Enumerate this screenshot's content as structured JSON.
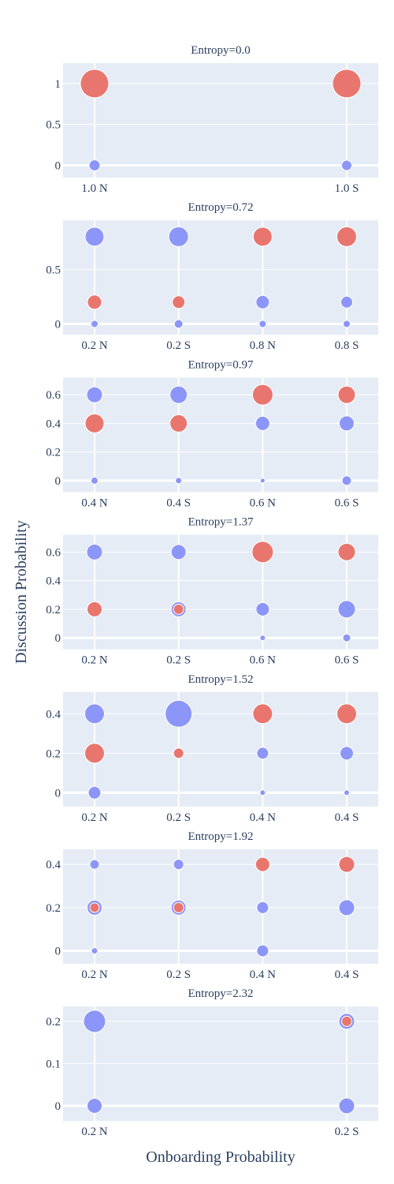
{
  "figure": {
    "xlabel": "Onboarding Probability",
    "ylabel": "Discussion Probability",
    "colors": {
      "blue": "#8c96f8",
      "red": "#e8766e",
      "background": "#e5ecf6"
    }
  },
  "chart_data": [
    {
      "type": "scatter",
      "title": "Entropy=0.0",
      "categories": [
        "1.0 N",
        "1.0 S"
      ],
      "ylim": [
        -0.15,
        1.25
      ],
      "yticks": [
        0,
        0.5,
        1
      ],
      "ytick_labels": [
        "0",
        "0.5",
        "1"
      ],
      "points": [
        {
          "x": "1.0 N",
          "y": 0,
          "color": "blue",
          "size": 7
        },
        {
          "x": "1.0 N",
          "y": 1,
          "color": "red",
          "size": 18
        },
        {
          "x": "1.0 S",
          "y": 0,
          "color": "blue",
          "size": 6.5
        },
        {
          "x": "1.0 S",
          "y": 1,
          "color": "red",
          "size": 18
        }
      ]
    },
    {
      "type": "scatter",
      "title": "Entropy=0.72",
      "categories": [
        "0.2 N",
        "0.2 S",
        "0.8 N",
        "0.8 S"
      ],
      "ylim": [
        -0.1,
        0.95
      ],
      "yticks": [
        0,
        0.5
      ],
      "ytick_labels": [
        "0",
        "0.5"
      ],
      "points": [
        {
          "x": "0.2 N",
          "y": 0.8,
          "color": "blue",
          "size": 12
        },
        {
          "x": "0.2 N",
          "y": 0.2,
          "color": "red",
          "size": 9
        },
        {
          "x": "0.2 N",
          "y": 0,
          "color": "blue",
          "size": 4.5
        },
        {
          "x": "0.2 S",
          "y": 0.8,
          "color": "blue",
          "size": 12.5
        },
        {
          "x": "0.2 S",
          "y": 0.2,
          "color": "red",
          "size": 8
        },
        {
          "x": "0.2 S",
          "y": 0,
          "color": "blue",
          "size": 5.5
        },
        {
          "x": "0.8 N",
          "y": 0.8,
          "color": "red",
          "size": 12
        },
        {
          "x": "0.8 N",
          "y": 0.2,
          "color": "blue",
          "size": 8.5
        },
        {
          "x": "0.8 N",
          "y": 0,
          "color": "blue",
          "size": 4.5
        },
        {
          "x": "0.8 S",
          "y": 0.8,
          "color": "red",
          "size": 12.5
        },
        {
          "x": "0.8 S",
          "y": 0.2,
          "color": "blue",
          "size": 7.5
        },
        {
          "x": "0.8 S",
          "y": 0,
          "color": "blue",
          "size": 4.5
        }
      ]
    },
    {
      "type": "scatter",
      "title": "Entropy=0.97",
      "categories": [
        "0.4 N",
        "0.4 S",
        "0.6 N",
        "0.6 S"
      ],
      "ylim": [
        -0.08,
        0.72
      ],
      "yticks": [
        0,
        0.2,
        0.4,
        0.6
      ],
      "ytick_labels": [
        "0",
        "0.2",
        "0.4",
        "0.6"
      ],
      "points": [
        {
          "x": "0.4 N",
          "y": 0.6,
          "color": "blue",
          "size": 10
        },
        {
          "x": "0.4 N",
          "y": 0.4,
          "color": "red",
          "size": 12
        },
        {
          "x": "0.4 N",
          "y": 0,
          "color": "blue",
          "size": 4.5
        },
        {
          "x": "0.4 S",
          "y": 0.6,
          "color": "blue",
          "size": 11
        },
        {
          "x": "0.4 S",
          "y": 0.4,
          "color": "red",
          "size": 11
        },
        {
          "x": "0.4 S",
          "y": 0,
          "color": "blue",
          "size": 4
        },
        {
          "x": "0.6 N",
          "y": 0.6,
          "color": "red",
          "size": 13
        },
        {
          "x": "0.6 N",
          "y": 0.4,
          "color": "blue",
          "size": 9
        },
        {
          "x": "0.6 N",
          "y": 0,
          "color": "blue",
          "size": 3
        },
        {
          "x": "0.6 S",
          "y": 0.6,
          "color": "red",
          "size": 11
        },
        {
          "x": "0.6 S",
          "y": 0.4,
          "color": "blue",
          "size": 9.5
        },
        {
          "x": "0.6 S",
          "y": 0,
          "color": "blue",
          "size": 6
        }
      ]
    },
    {
      "type": "scatter",
      "title": "Entropy=1.37",
      "categories": [
        "0.2 N",
        "0.2 S",
        "0.6 N",
        "0.6 S"
      ],
      "ylim": [
        -0.08,
        0.72
      ],
      "yticks": [
        0,
        0.2,
        0.4,
        0.6
      ],
      "ytick_labels": [
        "0",
        "0.2",
        "0.4",
        "0.6"
      ],
      "points": [
        {
          "x": "0.2 N",
          "y": 0.6,
          "color": "blue",
          "size": 10
        },
        {
          "x": "0.2 N",
          "y": 0.2,
          "color": "red",
          "size": 9.5
        },
        {
          "x": "0.2 S",
          "y": 0.6,
          "color": "blue",
          "size": 9.5
        },
        {
          "x": "0.2 S",
          "y": 0.2,
          "color": "blue",
          "size": 9.5
        },
        {
          "x": "0.2 S",
          "y": 0.2,
          "color": "red",
          "size": 6.5
        },
        {
          "x": "0.6 N",
          "y": 0.6,
          "color": "red",
          "size": 13.5
        },
        {
          "x": "0.6 N",
          "y": 0.2,
          "color": "blue",
          "size": 8.5
        },
        {
          "x": "0.6 N",
          "y": 0,
          "color": "blue",
          "size": 3.5
        },
        {
          "x": "0.6 S",
          "y": 0.6,
          "color": "red",
          "size": 11
        },
        {
          "x": "0.6 S",
          "y": 0.2,
          "color": "blue",
          "size": 11
        },
        {
          "x": "0.6 S",
          "y": 0,
          "color": "blue",
          "size": 5
        }
      ]
    },
    {
      "type": "scatter",
      "title": "Entropy=1.52",
      "categories": [
        "0.2 N",
        "0.2 S",
        "0.4 N",
        "0.4 S"
      ],
      "ylim": [
        -0.07,
        0.51
      ],
      "yticks": [
        0,
        0.2,
        0.4
      ],
      "ytick_labels": [
        "0",
        "0.2",
        "0.4"
      ],
      "points": [
        {
          "x": "0.2 N",
          "y": 0.4,
          "color": "blue",
          "size": 12.5
        },
        {
          "x": "0.2 N",
          "y": 0.2,
          "color": "red",
          "size": 12.5
        },
        {
          "x": "0.2 N",
          "y": 0,
          "color": "blue",
          "size": 8
        },
        {
          "x": "0.2 S",
          "y": 0.4,
          "color": "blue",
          "size": 17
        },
        {
          "x": "0.2 S",
          "y": 0.2,
          "color": "red",
          "size": 6.5
        },
        {
          "x": "0.4 N",
          "y": 0.4,
          "color": "red",
          "size": 12.5
        },
        {
          "x": "0.4 N",
          "y": 0.2,
          "color": "blue",
          "size": 7.5
        },
        {
          "x": "0.4 N",
          "y": 0,
          "color": "blue",
          "size": 3.5
        },
        {
          "x": "0.4 S",
          "y": 0.4,
          "color": "red",
          "size": 12.5
        },
        {
          "x": "0.4 S",
          "y": 0.2,
          "color": "blue",
          "size": 8.5
        },
        {
          "x": "0.4 S",
          "y": 0,
          "color": "blue",
          "size": 3.5
        }
      ]
    },
    {
      "type": "scatter",
      "title": "Entropy=1.92",
      "categories": [
        "0.2 N",
        "0.2 S",
        "0.4 N",
        "0.4 S"
      ],
      "ylim": [
        -0.06,
        0.47
      ],
      "yticks": [
        0,
        0.2,
        0.4
      ],
      "ytick_labels": [
        "0",
        "0.2",
        "0.4"
      ],
      "points": [
        {
          "x": "0.2 N",
          "y": 0.4,
          "color": "blue",
          "size": 6
        },
        {
          "x": "0.2 N",
          "y": 0.2,
          "color": "blue",
          "size": 9.5
        },
        {
          "x": "0.2 N",
          "y": 0.2,
          "color": "red",
          "size": 6
        },
        {
          "x": "0.2 N",
          "y": 0,
          "color": "blue",
          "size": 4
        },
        {
          "x": "0.2 S",
          "y": 0.4,
          "color": "blue",
          "size": 6.5
        },
        {
          "x": "0.2 S",
          "y": 0.2,
          "color": "blue",
          "size": 9.5
        },
        {
          "x": "0.2 S",
          "y": 0.2,
          "color": "red",
          "size": 6.5
        },
        {
          "x": "0.4 N",
          "y": 0.4,
          "color": "red",
          "size": 9
        },
        {
          "x": "0.4 N",
          "y": 0.2,
          "color": "blue",
          "size": 7.5
        },
        {
          "x": "0.4 N",
          "y": 0,
          "color": "blue",
          "size": 7.5
        },
        {
          "x": "0.4 S",
          "y": 0.4,
          "color": "red",
          "size": 10
        },
        {
          "x": "0.4 S",
          "y": 0.2,
          "color": "blue",
          "size": 10
        }
      ]
    },
    {
      "type": "scatter",
      "title": "Entropy=2.32",
      "categories": [
        "0.2 N",
        "0.2 S"
      ],
      "ylim": [
        -0.036,
        0.235
      ],
      "yticks": [
        0,
        0.1,
        0.2
      ],
      "ytick_labels": [
        "0",
        "0.1",
        "0.2"
      ],
      "points": [
        {
          "x": "0.2 N",
          "y": 0.2,
          "color": "blue",
          "size": 14
        },
        {
          "x": "0.2 N",
          "y": 0,
          "color": "blue",
          "size": 9.5
        },
        {
          "x": "0.2 S",
          "y": 0.2,
          "color": "blue",
          "size": 10
        },
        {
          "x": "0.2 S",
          "y": 0.2,
          "color": "red",
          "size": 6.5
        },
        {
          "x": "0.2 S",
          "y": 0,
          "color": "blue",
          "size": 10
        }
      ]
    }
  ]
}
